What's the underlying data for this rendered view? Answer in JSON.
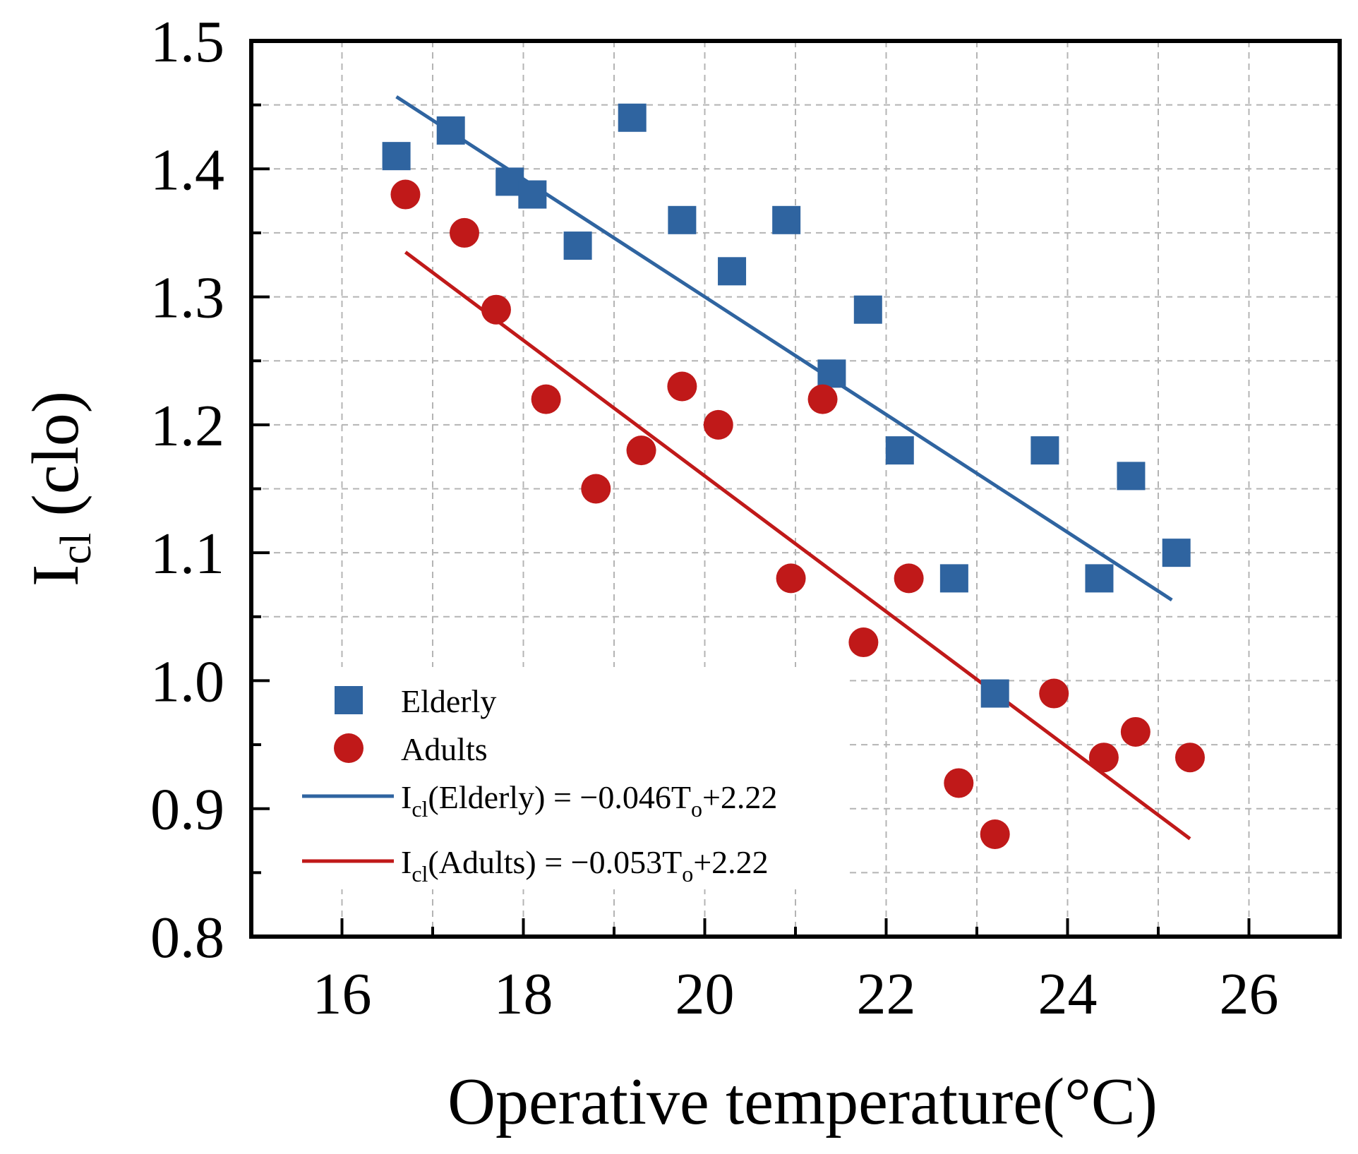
{
  "chart_data": {
    "type": "scatter",
    "xlabel": "Operative temperature(°C)",
    "ylabel": {
      "main": "I",
      "sub": "cl",
      "rest": " (clo)"
    },
    "xlim": [
      15,
      27
    ],
    "ylim": [
      0.8,
      1.5
    ],
    "x_ticks": [
      16,
      18,
      20,
      22,
      24,
      26
    ],
    "y_ticks": [
      0.8,
      0.9,
      1.0,
      1.1,
      1.2,
      1.3,
      1.4,
      1.5
    ],
    "x_tick_labels": [
      "16",
      "18",
      "20",
      "22",
      "24",
      "26"
    ],
    "y_tick_labels": [
      "0.8",
      "0.9",
      "1.0",
      "1.1",
      "1.2",
      "1.3",
      "1.4",
      "1.5"
    ],
    "grid": true,
    "legend_position": "bottom-left",
    "series": [
      {
        "name": "Elderly",
        "marker": "square",
        "color": "#2f64a0",
        "points": [
          [
            16.6,
            1.41
          ],
          [
            17.2,
            1.43
          ],
          [
            17.85,
            1.39
          ],
          [
            18.1,
            1.38
          ],
          [
            18.6,
            1.34
          ],
          [
            19.2,
            1.44
          ],
          [
            19.75,
            1.36
          ],
          [
            20.3,
            1.32
          ],
          [
            20.9,
            1.36
          ],
          [
            21.4,
            1.24
          ],
          [
            21.8,
            1.29
          ],
          [
            22.15,
            1.18
          ],
          [
            22.75,
            1.08
          ],
          [
            23.2,
            0.99
          ],
          [
            23.75,
            1.18
          ],
          [
            24.35,
            1.08
          ],
          [
            24.7,
            1.16
          ],
          [
            25.2,
            1.1
          ]
        ]
      },
      {
        "name": "Adults",
        "marker": "circle",
        "color": "#c01919",
        "points": [
          [
            16.7,
            1.38
          ],
          [
            17.35,
            1.35
          ],
          [
            17.7,
            1.29
          ],
          [
            18.25,
            1.22
          ],
          [
            18.8,
            1.15
          ],
          [
            19.3,
            1.18
          ],
          [
            19.75,
            1.23
          ],
          [
            20.15,
            1.2
          ],
          [
            20.95,
            1.08
          ],
          [
            21.3,
            1.22
          ],
          [
            21.75,
            1.03
          ],
          [
            22.25,
            1.08
          ],
          [
            22.8,
            0.92
          ],
          [
            23.2,
            0.88
          ],
          [
            23.85,
            0.99
          ],
          [
            24.4,
            0.94
          ],
          [
            24.75,
            0.96
          ],
          [
            25.35,
            0.94
          ]
        ]
      }
    ],
    "fits": [
      {
        "name": "Elderly",
        "color": "#2f64a0",
        "slope": -0.046,
        "intercept": 2.22,
        "x_range": [
          16.6,
          25.15
        ],
        "label": {
          "prefix": "I",
          "sub": "cl",
          "mid": "(Elderly) = −0.046T",
          "sub2": "o",
          "suffix": "+2.22"
        }
      },
      {
        "name": "Adults",
        "color": "#c01919",
        "slope": -0.053,
        "intercept": 2.22,
        "x_range": [
          16.7,
          25.35
        ],
        "label": {
          "prefix": "I",
          "sub": "cl",
          "mid": "(Adults) = −0.053T",
          "sub2": "o",
          "suffix": "+2.22"
        }
      }
    ]
  }
}
